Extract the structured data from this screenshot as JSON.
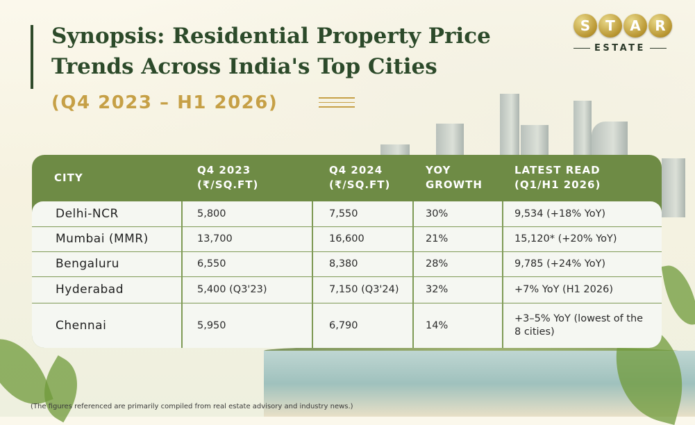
{
  "title": "Synopsis: Residential Property Price Trends Across India's Top Cities",
  "subtitle": "(Q4 2023 – H1 2026)",
  "logo": {
    "letters": [
      "S",
      "T",
      "A",
      "R"
    ],
    "sub": "ESTATE"
  },
  "table": {
    "headers": [
      "CITY",
      "Q4 2023\n(₹/SQ.FT)",
      "Q4 2024\n(₹/SQ.FT)",
      "YOY\nGROWTH",
      "LATEST READ\n(Q1/H1 2026)"
    ],
    "rows": [
      [
        "Delhi-NCR",
        "5,800",
        "7,550",
        "30%",
        "9,534 (+18% YoY)"
      ],
      [
        "Mumbai (MMR)",
        "13,700",
        "16,600",
        "21%",
        "15,120* (+20% YoY)"
      ],
      [
        "Bengaluru",
        "6,550",
        "8,380",
        "28%",
        "9,785 (+24% YoY)"
      ],
      [
        "Hyderabad",
        "5,400 (Q3'23)",
        "7,150 (Q3'24)",
        "32%",
        "+7% YoY (H1 2026)"
      ],
      [
        "Chennai",
        "5,950",
        "6,790",
        "14%",
        "+3–5% YoY (lowest of the 8 cities)"
      ]
    ]
  },
  "footnote": "(The figures referenced are primarily compiled from real estate advisory and industry news.)",
  "colors": {
    "header_green": "#6e8b45",
    "title_green": "#2c4a2a",
    "gold": "#c6a046"
  }
}
